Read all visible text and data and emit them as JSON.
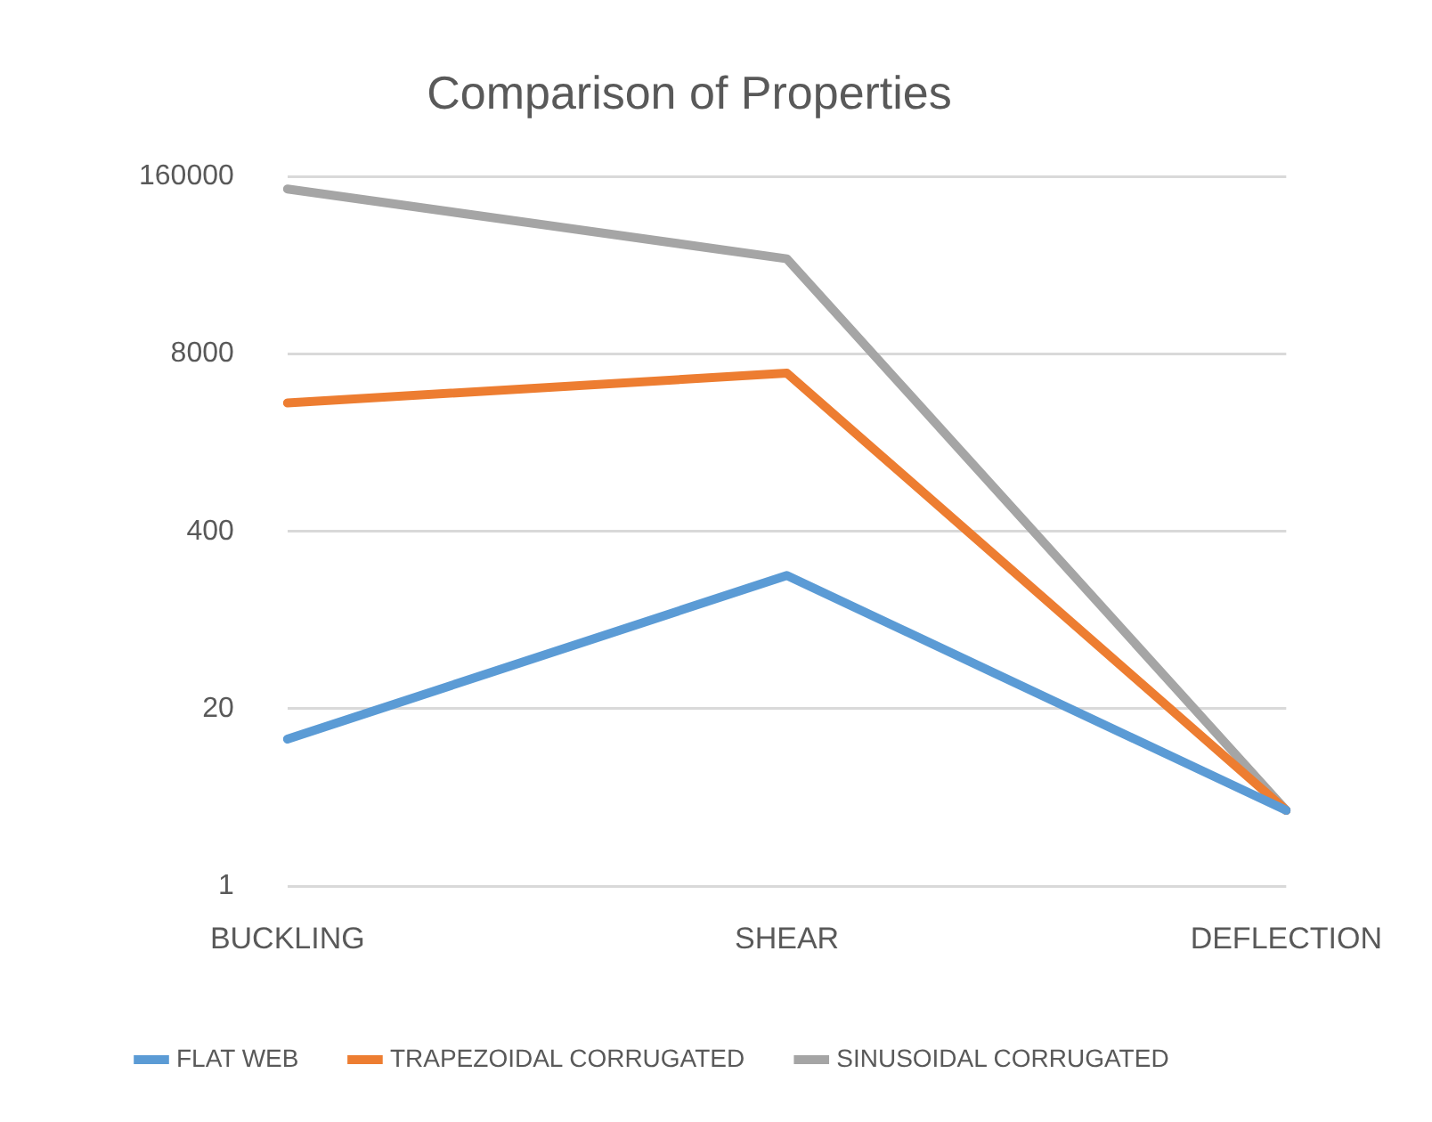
{
  "chart_data": {
    "type": "line",
    "title": "Comparison of Properties",
    "categories": [
      "BUCKLING",
      "SHEAR",
      "DEFLECTION"
    ],
    "series": [
      {
        "name": "FLAT WEB",
        "color": "#5b9bd5",
        "values": [
          12,
          190,
          3.6
        ]
      },
      {
        "name": "TRAPEZOIDAL CORRUGATED",
        "color": "#ed7d31",
        "values": [
          3500,
          5800,
          3.6
        ]
      },
      {
        "name": "SINUSOIDAL CORRUGATED",
        "color": "#a5a5a5",
        "values": [
          130000,
          40000,
          3.6
        ]
      }
    ],
    "ylim": [
      1,
      160000
    ],
    "yticks": [
      1,
      20,
      400,
      8000,
      160000
    ],
    "log": "y",
    "grid": "y",
    "legend": "bottom",
    "marker": "none",
    "line_style": "solid"
  }
}
